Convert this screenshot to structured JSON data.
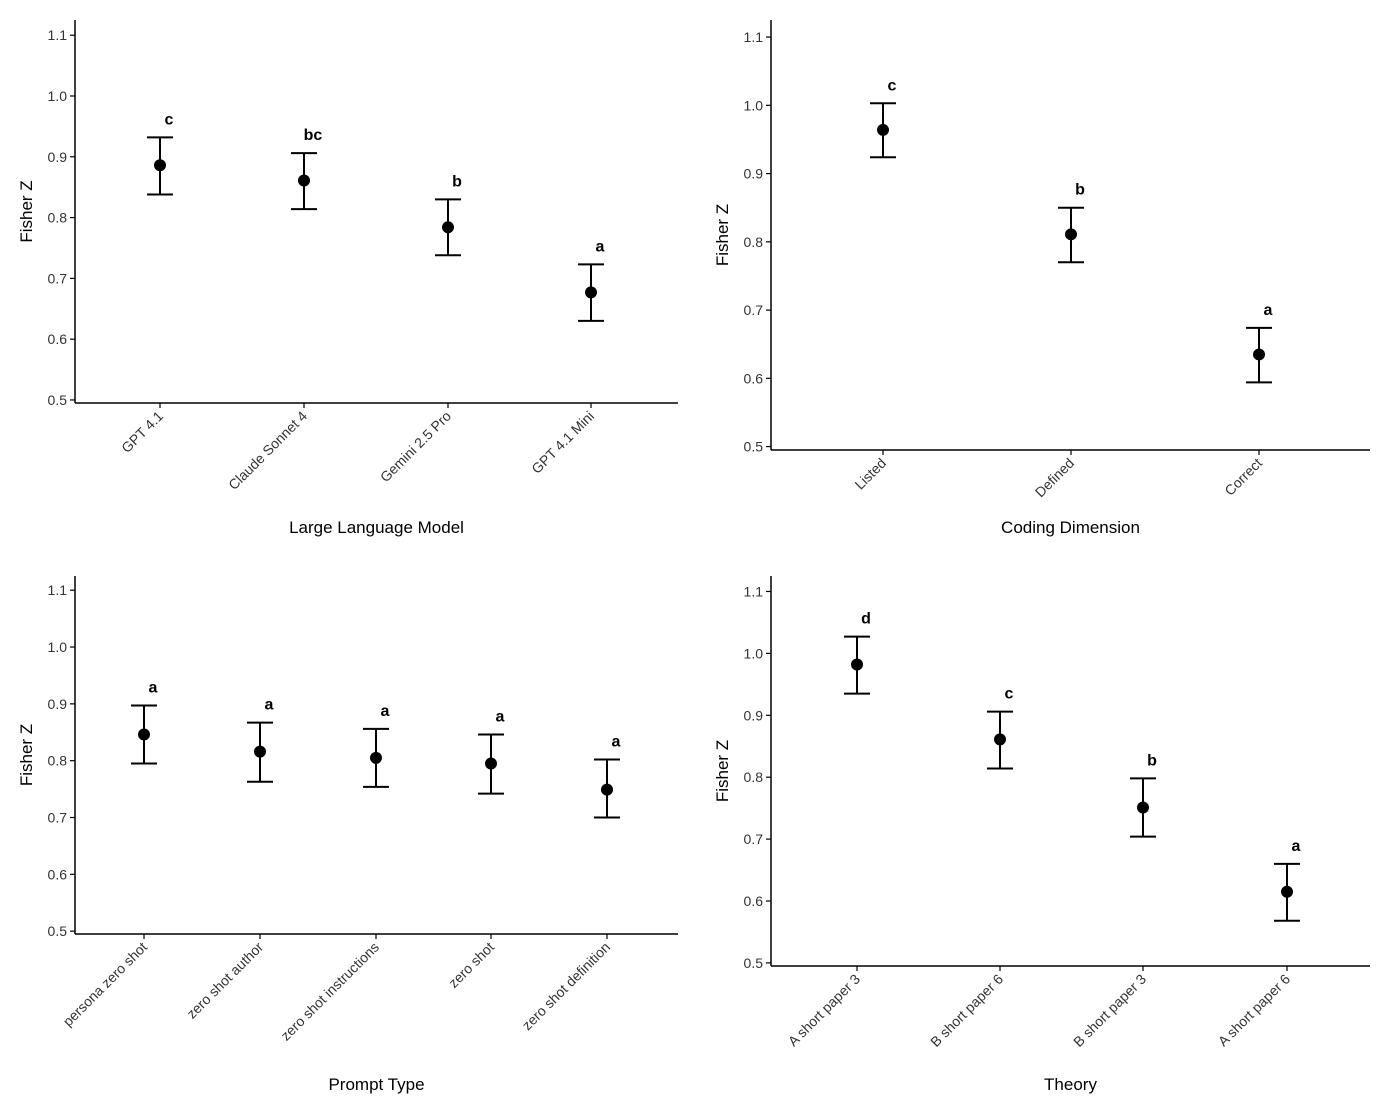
{
  "chart_data": [
    {
      "type": "scatter",
      "error_bars": true,
      "xlabel": "Large Language Model",
      "ylabel": "Fisher Z",
      "ylim": [
        0.495,
        1.125
      ],
      "yticks": [
        "0.5",
        "0.6",
        "0.7",
        "0.8",
        "0.9",
        "1.0",
        "1.1"
      ],
      "grid": false,
      "categories": [
        "GPT 4.1",
        "Claude Sonnet 4",
        "Gemini 2.5 Pro",
        "GPT 4.1 Mini"
      ],
      "values": [
        0.886,
        0.861,
        0.784,
        0.677
      ],
      "upper": [
        0.932,
        0.906,
        0.83,
        0.723
      ],
      "lower": [
        0.838,
        0.814,
        0.738,
        0.63
      ],
      "group_letters": [
        "c",
        "bc",
        "b",
        "a"
      ]
    },
    {
      "type": "scatter",
      "error_bars": true,
      "xlabel": "Coding Dimension",
      "ylabel": "Fisher Z",
      "ylim": [
        0.495,
        1.125
      ],
      "yticks": [
        "0.5",
        "0.6",
        "0.7",
        "0.8",
        "0.9",
        "1.0",
        "1.1"
      ],
      "grid": false,
      "categories": [
        "Listed",
        "Defined",
        "Correct"
      ],
      "values": [
        0.964,
        0.811,
        0.635
      ],
      "upper": [
        1.003,
        0.85,
        0.674
      ],
      "lower": [
        0.924,
        0.77,
        0.594
      ],
      "group_letters": [
        "c",
        "b",
        "a"
      ]
    },
    {
      "type": "scatter",
      "error_bars": true,
      "xlabel": "Prompt Type",
      "ylabel": "Fisher Z",
      "ylim": [
        0.495,
        1.125
      ],
      "yticks": [
        "0.5",
        "0.6",
        "0.7",
        "0.8",
        "0.9",
        "1.0",
        "1.1"
      ],
      "grid": false,
      "categories": [
        "persona zero shot",
        "zero shot author",
        "zero shot instructions",
        "zero shot",
        "zero shot definition"
      ],
      "values": [
        0.846,
        0.816,
        0.805,
        0.795,
        0.749
      ],
      "upper": [
        0.897,
        0.867,
        0.856,
        0.846,
        0.802
      ],
      "lower": [
        0.795,
        0.763,
        0.754,
        0.742,
        0.7
      ],
      "group_letters": [
        "a",
        "a",
        "a",
        "a",
        "a"
      ]
    },
    {
      "type": "scatter",
      "error_bars": true,
      "xlabel": "Theory",
      "ylabel": "Fisher Z",
      "ylim": [
        0.495,
        1.125
      ],
      "yticks": [
        "0.5",
        "0.6",
        "0.7",
        "0.8",
        "0.9",
        "1.0",
        "1.1"
      ],
      "grid": false,
      "categories": [
        "A short paper 3",
        "B short paper 6",
        "B short paper 3",
        "A short paper 6"
      ],
      "values": [
        0.982,
        0.861,
        0.751,
        0.615
      ],
      "upper": [
        1.027,
        0.906,
        0.798,
        0.66
      ],
      "lower": [
        0.935,
        0.814,
        0.704,
        0.568
      ],
      "group_letters": [
        "d",
        "c",
        "b",
        "a"
      ]
    }
  ]
}
